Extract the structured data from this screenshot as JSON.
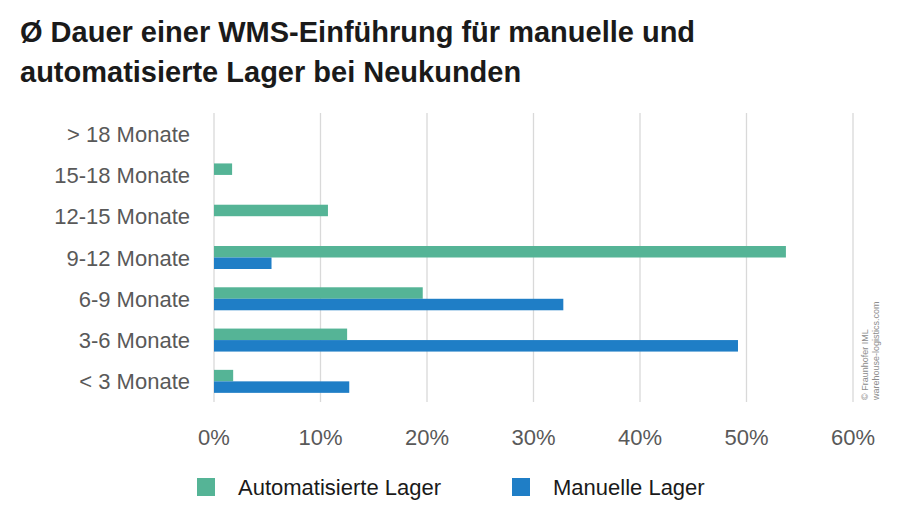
{
  "chart_data": {
    "type": "bar",
    "orientation": "horizontal",
    "title": "Ø Dauer einer WMS-Einführung für manuelle und automatisierte Lager bei Neukunden",
    "categories": [
      "> 18 Monate",
      "15-18 Monate",
      "12-15 Monate",
      "9-12 Monate",
      "6-9 Monate",
      "3-6 Monate",
      "< 3 Monate"
    ],
    "series": [
      {
        "name": "Automatisierte Lager",
        "color": "#55b496",
        "values": [
          0,
          1.7,
          10.7,
          53.7,
          19.6,
          12.5,
          1.8
        ]
      },
      {
        "name": "Manuelle Lager",
        "color": "#1f7ec6",
        "values": [
          0,
          0,
          0,
          5.4,
          32.8,
          49.2,
          12.7
        ]
      }
    ],
    "xlim": [
      0,
      60
    ],
    "xticks": [
      {
        "value": 0,
        "label": "0%"
      },
      {
        "value": 10,
        "label": "10%"
      },
      {
        "value": 20,
        "label": "20%"
      },
      {
        "value": 30,
        "label": "30%"
      },
      {
        "value": 40,
        "label": "40%"
      },
      {
        "value": 50,
        "label": "50%"
      },
      {
        "value": 60,
        "label": "60%"
      }
    ],
    "grid": true,
    "legend": "bottom",
    "annotations": [
      "© Fraunhofer IML",
      "warehouse-logistics.com"
    ]
  }
}
